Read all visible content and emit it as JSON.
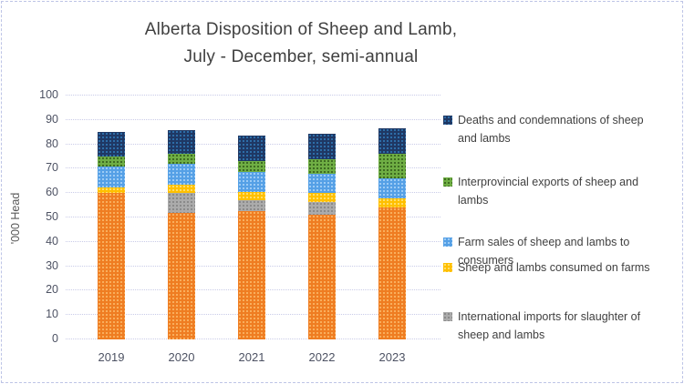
{
  "title": {
    "line1": "Alberta Disposition of Sheep and Lamb,",
    "line2": "July - December, semi-annual"
  },
  "y_axis": {
    "title": "'000 Head",
    "ticks": [
      0,
      10,
      20,
      30,
      40,
      50,
      60,
      70,
      80,
      90,
      100
    ]
  },
  "colors": {
    "grid": "#c9cbe8",
    "axis_text": "#4d5263",
    "title_text": "#404040",
    "frame_border": "#bdc4e6"
  },
  "chart_data": {
    "type": "bar",
    "stacked": true,
    "title": "Alberta Disposition of Sheep and Lamb, July - December, semi-annual",
    "xlabel": "",
    "ylabel": "'000 Head",
    "ylim": [
      0,
      100
    ],
    "ytick_step": 10,
    "grid": "dotted-horizontal",
    "legend_position": "right",
    "categories": [
      "2019",
      "2020",
      "2021",
      "2022",
      "2023"
    ],
    "series": [
      {
        "key": "orange",
        "name": "",
        "legend_visible": false,
        "color": "#ef7d22",
        "dot_color": "#f9ae5c",
        "values": [
          60,
          52,
          52.5,
          51,
          54
        ]
      },
      {
        "key": "gray",
        "name": "International imports for slaughter of sheep and lambs",
        "color": "#ababab",
        "dot_color": "#8a8a8a",
        "values": [
          0,
          8,
          4.5,
          5.5,
          0
        ]
      },
      {
        "key": "yellow",
        "name": "Sheep and lambs consumed on farms",
        "color": "#ffc000",
        "dot_color": "#ffde6b",
        "values": [
          2.5,
          3.5,
          3.5,
          3.5,
          4
        ]
      },
      {
        "key": "blue",
        "name": "Farm sales of sheep and lambs to consumers",
        "color": "#55a0e6",
        "dot_color": "#9ccbf5",
        "values": [
          8.5,
          8.5,
          8,
          8,
          8
        ]
      },
      {
        "key": "green",
        "name": "Interprovincial exports of sheep and lambs",
        "color": "#6fae44",
        "dot_color": "#3e6b22",
        "values": [
          4,
          4,
          4.5,
          6,
          10
        ]
      },
      {
        "key": "navy",
        "name": "Deaths and condemnations of sheep and lambs",
        "color": "#1f3864",
        "dot_color": "#2d6da8",
        "values": [
          10,
          10,
          10.5,
          10.5,
          10.5
        ]
      }
    ],
    "totals": [
      85,
      86,
      83.5,
      84.5,
      86.5
    ],
    "legend": [
      {
        "key": "navy",
        "color": "#1f3864",
        "dot_color": "#2d6da8",
        "lines": [
          "Deaths and condemnations of sheep",
          "and lambs"
        ]
      },
      {
        "key": "green",
        "color": "#6fae44",
        "dot_color": "#3e6b22",
        "lines": [
          "Interprovincial exports of sheep and",
          "lambs"
        ]
      },
      {
        "key": "blue",
        "color": "#55a0e6",
        "dot_color": "#9ccbf5",
        "lines": [
          "Farm sales of sheep and lambs to",
          "consumers"
        ]
      },
      {
        "key": "yellow",
        "color": "#ffc000",
        "dot_color": "#ffde6b",
        "lines": [
          "Sheep and lambs consumed on farms"
        ]
      },
      {
        "key": "gray",
        "color": "#ababab",
        "dot_color": "#8a8a8a",
        "lines": [
          "International imports for slaughter of",
          "sheep and lambs"
        ]
      }
    ]
  }
}
